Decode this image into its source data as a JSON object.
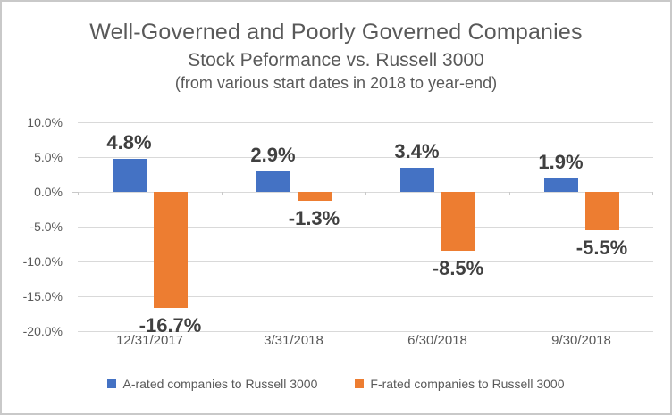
{
  "header": {
    "title": "Well-Governed and Poorly Governed Companies",
    "subtitle": "Stock Peformance vs. Russell 3000",
    "note": "(from various start dates in 2018 to year-end)"
  },
  "chart_data": {
    "type": "bar",
    "title": "Well-Governed and Poorly Governed Companies",
    "subtitle": "Stock Peformance vs. Russell 3000",
    "note": "(from various start dates in 2018 to year-end)",
    "categories": [
      "12/31/2017",
      "3/31/2018",
      "6/30/2018",
      "9/30/2018"
    ],
    "series": [
      {
        "name": "A-rated companies to Russell 3000",
        "color": "#4472C4",
        "values": [
          4.8,
          2.9,
          3.4,
          1.9
        ],
        "data_labels": [
          "4.8%",
          "2.9%",
          "3.4%",
          "1.9%"
        ]
      },
      {
        "name": "F-rated companies to Russell 3000",
        "color": "#ED7D31",
        "values": [
          -16.7,
          -1.3,
          -8.5,
          -5.5
        ],
        "data_labels": [
          "-16.7%",
          "-1.3%",
          "-8.5%",
          "-5.5%"
        ]
      }
    ],
    "ylim": [
      -20,
      10
    ],
    "yticks": [
      {
        "value": 10.0,
        "label": "10.0%"
      },
      {
        "value": 5.0,
        "label": "5.0%"
      },
      {
        "value": 0.0,
        "label": "0.0%"
      },
      {
        "value": -5.0,
        "label": "-5.0%"
      },
      {
        "value": -10.0,
        "label": "-10.0%"
      },
      {
        "value": -15.0,
        "label": "-15.0%"
      },
      {
        "value": -20.0,
        "label": "-20.0%"
      }
    ],
    "grid": true,
    "legend_position": "bottom"
  },
  "colors": {
    "axis_text": "#595959",
    "data_label_text": "#404040",
    "gridline": "#D9D9D9",
    "series_a": "#4472C4",
    "series_f": "#ED7D31",
    "frame_border": "#C9C9C9",
    "background": "#FFFFFF"
  }
}
